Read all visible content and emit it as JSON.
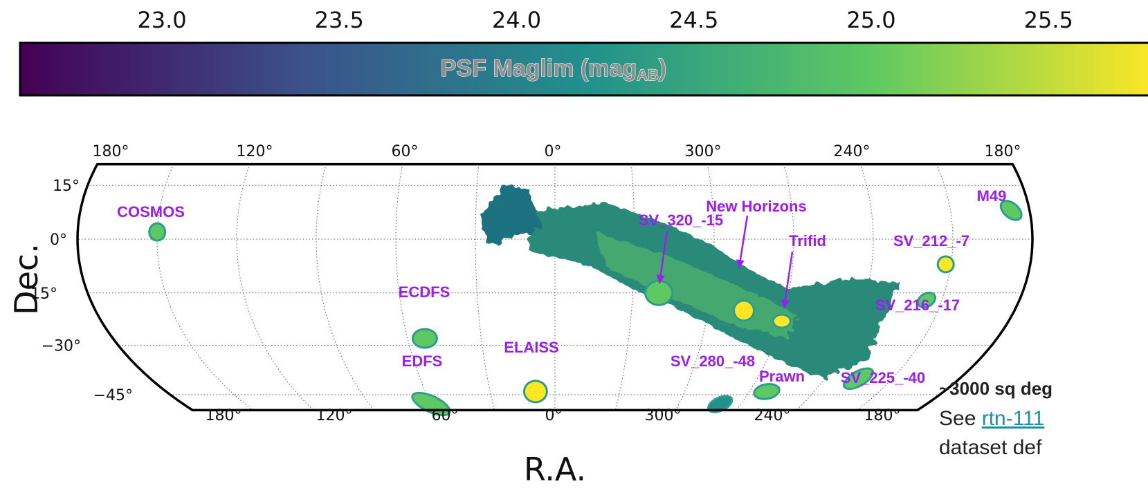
{
  "chart_data": {
    "type": "scatter",
    "projection": "mollweide",
    "colorbar": {
      "label_main": "PSF Maglim (mag",
      "label_sub": "AB",
      "label_close": ")",
      "ticks": [
        "23.0",
        "23.5",
        "24.0",
        "24.5",
        "25.0",
        "25.5"
      ],
      "tick_values": [
        23.0,
        23.5,
        24.0,
        24.5,
        25.0,
        25.5
      ],
      "range": [
        22.6,
        25.8
      ],
      "colormap": [
        "#440154",
        "#3b528b",
        "#21918c",
        "#5ec962",
        "#fde725"
      ]
    },
    "top_ra_ticks": [
      "180°",
      "120°",
      "60°",
      "0°",
      "300°",
      "240°",
      "180°"
    ],
    "bottom_ra_ticks": [
      "180°",
      "120°",
      "60°",
      "0°",
      "300°",
      "240°",
      "180°"
    ],
    "ra_tick_values": [
      180,
      120,
      60,
      0,
      300,
      240,
      180
    ],
    "dec_ticks": [
      "15°",
      "0°",
      "−15°",
      "−30°",
      "−45°"
    ],
    "dec_tick_values": [
      15,
      0,
      -15,
      -30,
      -45
    ],
    "xlabel": "R.A.",
    "ylabel": "Dec.",
    "grid": true,
    "fields": [
      {
        "name": "COSMOS",
        "ra": 150,
        "dec": 2,
        "mag": 25.3
      },
      {
        "name": "ECDFS",
        "ra": 53,
        "dec": -28,
        "mag": 25.4
      },
      {
        "name": "EDFS",
        "ra": 60,
        "dec": -48,
        "mag": 25.2
      },
      {
        "name": "ELAISS",
        "ra": 9,
        "dec": -44,
        "mag": 25.5
      },
      {
        "name": "SV_320_-15",
        "ra": 320,
        "dec": -15,
        "mag": 24.8
      },
      {
        "name": "New Horizons",
        "ra": 286,
        "dec": -20,
        "mag": 25.6
      },
      {
        "name": "Trifid",
        "ra": 270,
        "dec": -23,
        "mag": 25.5
      },
      {
        "name": "SV_212_-7",
        "ra": 212,
        "dec": -7,
        "mag": 25.5
      },
      {
        "name": "SV_216_-17",
        "ra": 216,
        "dec": -17,
        "mag": 25.2
      },
      {
        "name": "M49",
        "ra": 187,
        "dec": 8,
        "mag": 25.4
      },
      {
        "name": "SV_280_-48",
        "ra": 280,
        "dec": -48,
        "mag": 24.3
      },
      {
        "name": "Prawn",
        "ra": 262,
        "dec": -44,
        "mag": 25.3
      },
      {
        "name": "SV_225_-40",
        "ra": 225,
        "dec": -40,
        "mag": 25.2
      }
    ]
  },
  "side_note": {
    "area": "~3000 sq deg",
    "see_prefix": "See ",
    "link": "rtn-111",
    "cut_text": "dataset def"
  }
}
